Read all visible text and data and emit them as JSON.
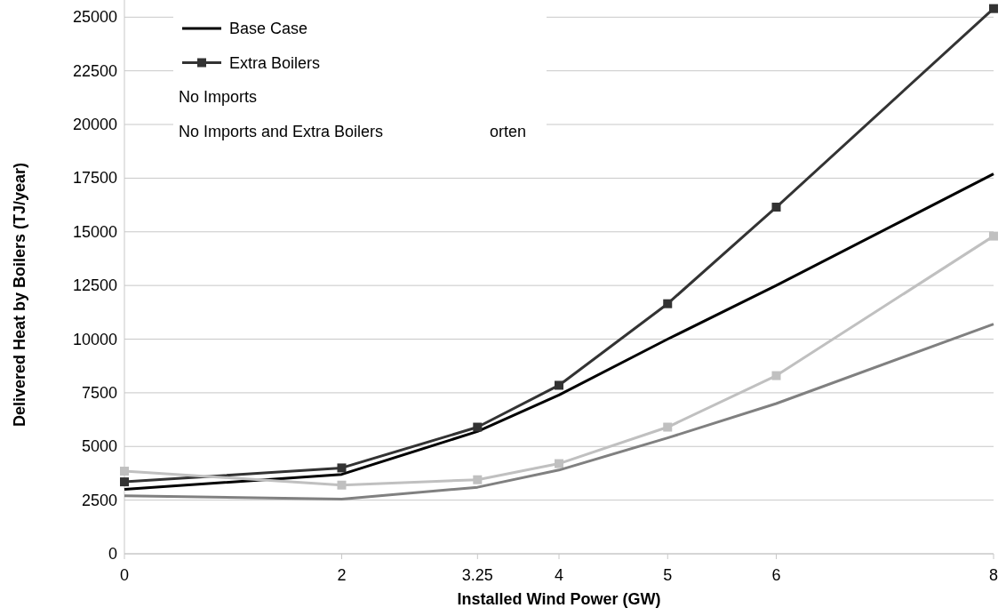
{
  "chart_data": {
    "type": "line",
    "xlabel": "Installed Wind Power (GW)",
    "ylabel": "Delivered Heat by Boilers (TJ/year)",
    "x": [
      0,
      2,
      3.25,
      4,
      5,
      6,
      8
    ],
    "series": [
      {
        "name": "Base Case",
        "color": "#000000",
        "marker": "none",
        "values": [
          3000,
          3700,
          5700,
          7400,
          10000,
          12500,
          17700
        ]
      },
      {
        "name": "Extra Boilers",
        "color": "#333333",
        "marker": "square",
        "values": [
          3350,
          4000,
          5900,
          7850,
          11650,
          16150,
          25400
        ]
      },
      {
        "color": "#c0c0c0",
        "marker": "square",
        "values": [
          3850,
          3200,
          3450,
          4200,
          5900,
          8300,
          14800
        ]
      },
      {
        "color": "#808080",
        "marker": "none",
        "values": [
          2700,
          2550,
          3100,
          3900,
          5400,
          7000,
          10700
        ]
      }
    ],
    "annotations": [
      "No Imports",
      "No Imports and Extra Boilers",
      "orten"
    ],
    "xlim": [
      0,
      8
    ],
    "xticks": [
      0,
      2,
      3.25,
      4,
      5,
      6,
      8
    ],
    "ylim": [
      0,
      25800
    ],
    "yticks": [
      0,
      2500,
      5000,
      7500,
      10000,
      12500,
      15000,
      17500,
      20000,
      22500,
      25000
    ],
    "grid": "y",
    "legend": "top left",
    "line_style": "solid"
  }
}
